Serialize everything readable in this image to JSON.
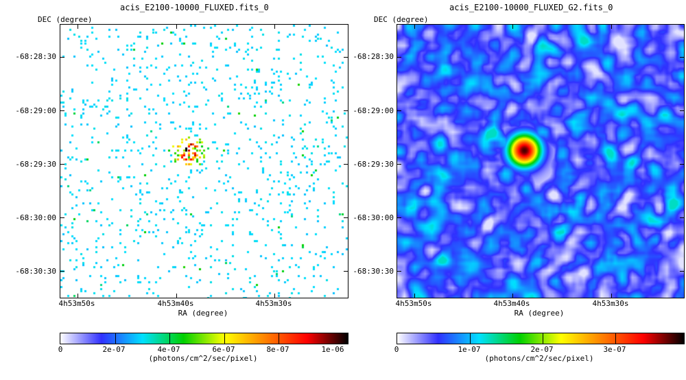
{
  "panels": [
    {
      "title": "acis_E2100-10000_FLUXED.fits_0",
      "dec_label": "DEC (degree)",
      "ra_label": "RA (degree)",
      "dec_ticks": [
        "-68:28:30",
        "-68:29:00",
        "-68:29:30",
        "-68:30:00",
        "-68:30:30"
      ],
      "ra_ticks": [
        "4h53m50s",
        "4h53m40s",
        "4h53m30s"
      ],
      "colorbar_ticks": [
        "0",
        "2e-07",
        "4e-07",
        "6e-07",
        "8e-07",
        "1e-06"
      ],
      "colorbar_label": "(photons/cm^2/sec/pixel)"
    },
    {
      "title": "acis_E2100-10000_FLUXED_G2.fits_0",
      "dec_label": "DEC (degree)",
      "ra_label": "RA (degree)",
      "dec_ticks": [
        "-68:28:30",
        "-68:29:00",
        "-68:29:30",
        "-68:30:00",
        "-68:30:30"
      ],
      "ra_ticks": [
        "4h53m50s",
        "4h53m40s",
        "4h53m30s"
      ],
      "colorbar_ticks": [
        "0",
        "1e-07",
        "2e-07",
        "3e-07"
      ],
      "colorbar_label": "(photons/cm^2/sec/pixel)"
    }
  ],
  "colors": {
    "colormap": [
      "#ffffff",
      "#3030ff",
      "#00e0ff",
      "#00d000",
      "#ffff00",
      "#ff8000",
      "#ff0000",
      "#000000"
    ]
  }
}
